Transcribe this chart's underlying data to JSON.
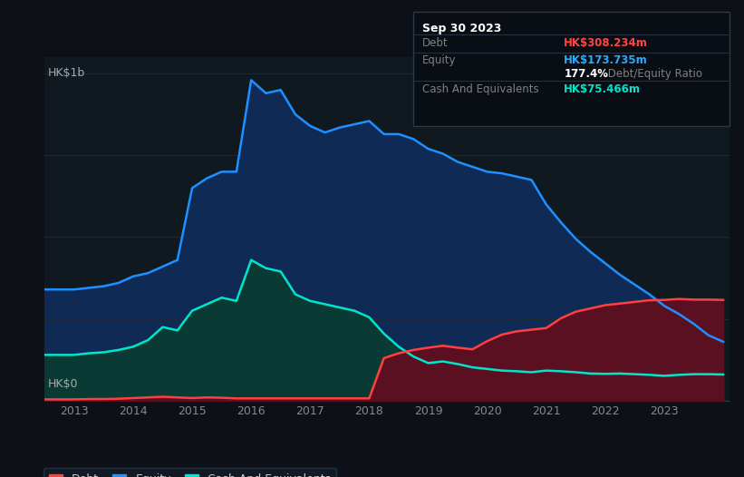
{
  "background_color": "#0d1117",
  "plot_bg_color": "#101820",
  "grid_color": "#1e2a38",
  "title_box": {
    "date": "Sep 30 2023",
    "debt_label": "Debt",
    "debt_value": "HK$308.234m",
    "debt_color": "#ff4444",
    "equity_label": "Equity",
    "equity_value": "HK$173.735m",
    "equity_color": "#29aaff",
    "ratio_value": "177.4%",
    "ratio_label": " Debt/Equity Ratio",
    "cash_label": "Cash And Equivalents",
    "cash_value": "HK$75.466m",
    "cash_color": "#00e5cc",
    "box_bg": "#080e14",
    "box_border": "#2a3a4a",
    "label_color": "#808080",
    "title_color": "#ffffff",
    "ratio_color": "#ffffff"
  },
  "ylabel_top": "HK$1b",
  "ylabel_bottom": "HK$0",
  "xlim": [
    2012.5,
    2024.1
  ],
  "ylim": [
    0,
    1050
  ],
  "xticks": [
    2013,
    2014,
    2015,
    2016,
    2017,
    2018,
    2019,
    2020,
    2021,
    2022,
    2023
  ],
  "yticks_positions": [
    0,
    250,
    500,
    750,
    1000
  ],
  "equity_color": "#1e90ff",
  "equity_fill": "#0e2a55",
  "debt_color": "#ff4040",
  "debt_fill": "#5a1020",
  "cash_color": "#00e5cc",
  "cash_fill": "#0a3a34",
  "equity_data_x": [
    2012.5,
    2013.0,
    2013.25,
    2013.5,
    2013.75,
    2014.0,
    2014.25,
    2014.5,
    2014.75,
    2015.0,
    2015.25,
    2015.5,
    2015.75,
    2016.0,
    2016.25,
    2016.5,
    2016.75,
    2017.0,
    2017.25,
    2017.5,
    2017.75,
    2018.0,
    2018.25,
    2018.5,
    2018.75,
    2019.0,
    2019.25,
    2019.5,
    2019.75,
    2020.0,
    2020.25,
    2020.5,
    2020.75,
    2021.0,
    2021.25,
    2021.5,
    2021.75,
    2022.0,
    2022.25,
    2022.5,
    2022.75,
    2023.0,
    2023.25,
    2023.5,
    2023.75,
    2024.0
  ],
  "equity_data_y": [
    340,
    340,
    345,
    350,
    360,
    380,
    390,
    410,
    430,
    650,
    680,
    700,
    700,
    980,
    940,
    950,
    875,
    840,
    820,
    835,
    845,
    855,
    815,
    815,
    800,
    770,
    755,
    730,
    715,
    700,
    695,
    685,
    675,
    600,
    545,
    495,
    455,
    420,
    385,
    355,
    325,
    290,
    265,
    235,
    200,
    180
  ],
  "cash_data_x": [
    2012.5,
    2013.0,
    2013.25,
    2013.5,
    2013.75,
    2014.0,
    2014.25,
    2014.5,
    2014.75,
    2015.0,
    2015.25,
    2015.5,
    2015.75,
    2016.0,
    2016.25,
    2016.5,
    2016.75,
    2017.0,
    2017.25,
    2017.5,
    2017.75,
    2018.0,
    2018.25,
    2018.5,
    2018.75,
    2019.0,
    2019.25,
    2019.5,
    2019.75,
    2020.0,
    2020.25,
    2020.5,
    2020.75,
    2021.0,
    2021.25,
    2021.5,
    2021.75,
    2022.0,
    2022.25,
    2022.5,
    2022.75,
    2023.0,
    2023.25,
    2023.5,
    2023.75,
    2024.0
  ],
  "cash_data_y": [
    140,
    140,
    145,
    148,
    155,
    165,
    185,
    225,
    215,
    275,
    295,
    315,
    305,
    430,
    405,
    395,
    325,
    305,
    295,
    285,
    275,
    255,
    205,
    165,
    135,
    115,
    120,
    112,
    102,
    97,
    92,
    90,
    87,
    92,
    90,
    87,
    83,
    82,
    83,
    81,
    79,
    76,
    79,
    81,
    81,
    80
  ],
  "debt_data_x": [
    2012.5,
    2013.0,
    2013.25,
    2013.5,
    2013.75,
    2014.0,
    2014.25,
    2014.5,
    2014.75,
    2015.0,
    2015.25,
    2015.5,
    2015.75,
    2016.0,
    2016.25,
    2016.5,
    2016.75,
    2017.0,
    2017.25,
    2017.5,
    2017.75,
    2018.0,
    2018.25,
    2018.5,
    2018.75,
    2019.0,
    2019.25,
    2019.5,
    2019.75,
    2020.0,
    2020.25,
    2020.5,
    2020.75,
    2021.0,
    2021.25,
    2021.5,
    2021.75,
    2022.0,
    2022.25,
    2022.5,
    2022.75,
    2023.0,
    2023.25,
    2023.5,
    2023.75,
    2024.0
  ],
  "debt_data_y": [
    4,
    4,
    5,
    5,
    6,
    8,
    10,
    12,
    10,
    8,
    10,
    9,
    7,
    7,
    7,
    7,
    7,
    7,
    7,
    7,
    7,
    7,
    130,
    145,
    155,
    162,
    168,
    162,
    157,
    182,
    202,
    212,
    217,
    222,
    252,
    272,
    282,
    292,
    297,
    302,
    307,
    308,
    311,
    309,
    309,
    308
  ],
  "legend": [
    {
      "label": "Debt",
      "color": "#ff4040"
    },
    {
      "label": "Equity",
      "color": "#1e90ff"
    },
    {
      "label": "Cash And Equivalents",
      "color": "#00e5cc"
    }
  ]
}
